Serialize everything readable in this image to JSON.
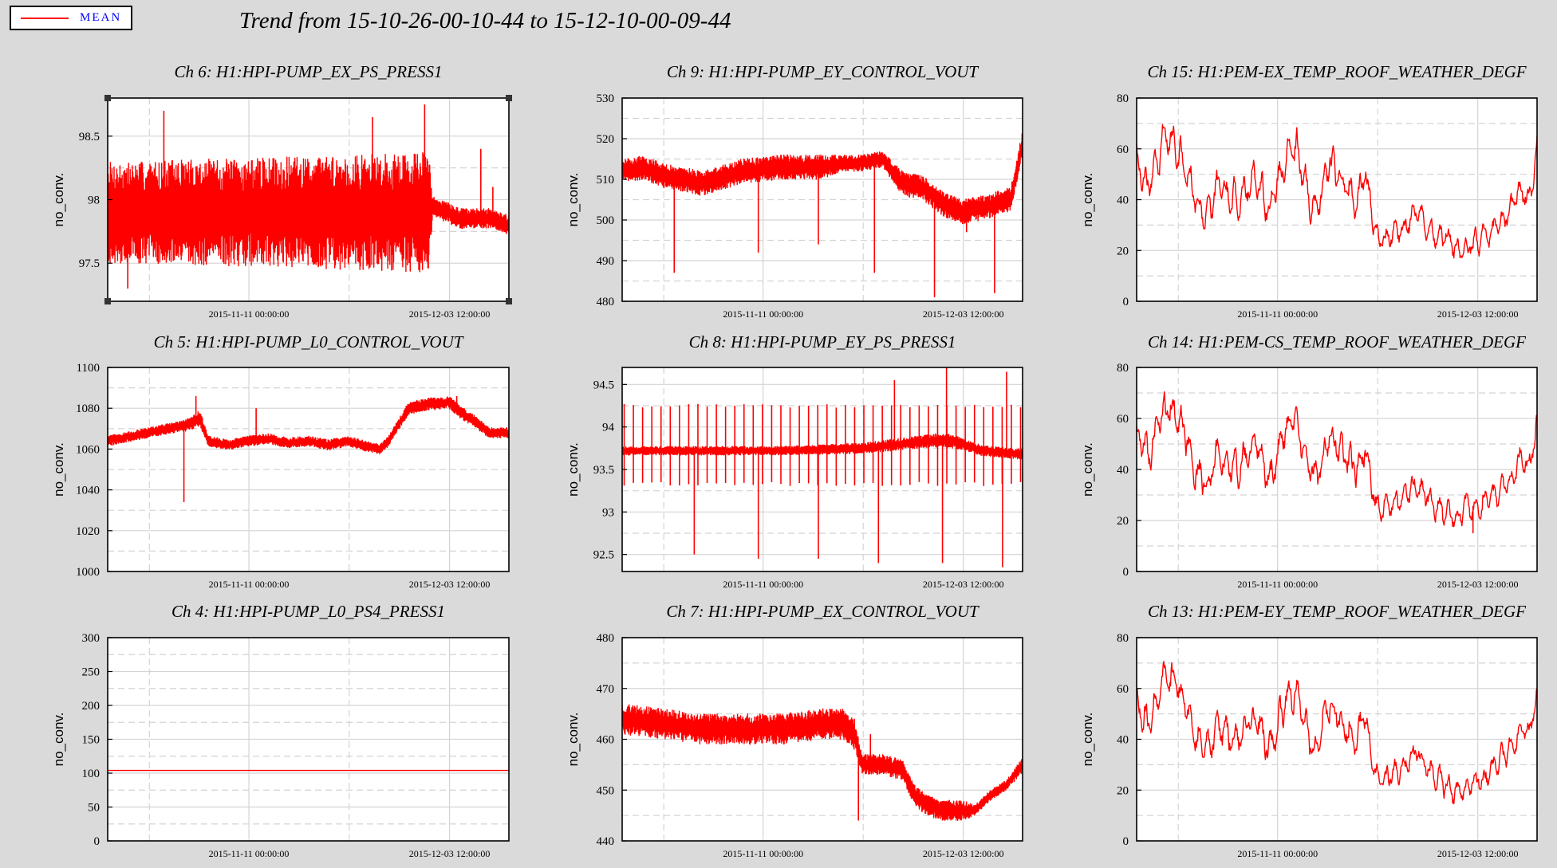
{
  "legend": {
    "label": "MEAN",
    "color": "#ff0000"
  },
  "title": "Trend from 15-10-26-00-10-44 to 15-12-10-00-09-44",
  "chart_data": [
    {
      "type": "line",
      "title": "Ch 6: H1:HPI-PUMP_EX_PS_PRESS1",
      "ylabel": "no_conv.",
      "ylim": [
        97.2,
        98.8
      ],
      "yticks": [
        "97.5",
        "98",
        "98.5"
      ],
      "ytick_values": [
        97.5,
        98.0,
        98.5
      ],
      "xticks": [
        "2015-11-11 00:00:00",
        "2015-12-03 12:00:00"
      ],
      "series": [
        {
          "color": "#ff0000",
          "style": "noisy",
          "x": [
            0.0,
            0.1,
            0.2,
            0.3,
            0.4,
            0.5,
            0.6,
            0.7,
            0.8,
            0.81,
            0.88,
            0.9,
            0.95,
            1.0
          ],
          "y": [
            97.9,
            97.9,
            97.9,
            97.9,
            97.9,
            97.9,
            97.9,
            97.9,
            97.9,
            97.95,
            97.85,
            97.85,
            97.85,
            97.8
          ],
          "amp": [
            0.4,
            0.4,
            0.42,
            0.42,
            0.43,
            0.44,
            0.45,
            0.46,
            0.48,
            0.08,
            0.08,
            0.08,
            0.08,
            0.08
          ],
          "spikes": [
            [
              0.14,
              98.7
            ],
            [
              0.79,
              98.75
            ],
            [
              0.66,
              98.65
            ],
            [
              0.93,
              98.4
            ],
            [
              0.96,
              98.1
            ],
            [
              0.05,
              97.3
            ]
          ]
        }
      ]
    },
    {
      "type": "line",
      "title": "Ch 9: H1:HPI-PUMP_EY_CONTROL_VOUT",
      "ylabel": "no_conv.",
      "ylim": [
        480,
        530
      ],
      "yticks": [
        "480",
        "490",
        "500",
        "510",
        "520",
        "530"
      ],
      "ytick_values": [
        480,
        490,
        500,
        510,
        520,
        530
      ],
      "xticks": [
        "2015-11-11 00:00:00",
        "2015-12-03 12:00:00"
      ],
      "series": [
        {
          "color": "#ff0000",
          "style": "noisy",
          "x": [
            0.0,
            0.05,
            0.1,
            0.2,
            0.3,
            0.4,
            0.5,
            0.55,
            0.6,
            0.65,
            0.7,
            0.75,
            0.8,
            0.85,
            0.9,
            0.97,
            1.0
          ],
          "y": [
            512,
            513,
            511,
            509,
            512,
            513,
            513,
            514,
            514,
            515,
            509,
            508,
            504,
            502,
            503,
            505,
            519
          ],
          "amp": [
            3,
            3,
            3,
            3,
            3,
            3,
            3,
            2,
            2,
            2,
            3,
            3,
            3,
            3,
            3,
            3,
            3
          ],
          "spikes": [
            [
              0.13,
              487
            ],
            [
              0.34,
              492
            ],
            [
              0.49,
              494
            ],
            [
              0.63,
              487
            ],
            [
              0.78,
              481
            ],
            [
              0.93,
              482
            ],
            [
              0.86,
              497
            ]
          ]
        }
      ]
    },
    {
      "type": "line",
      "title": "Ch 15: H1:PEM-EX_TEMP_ROOF_WEATHER_DEGF",
      "ylabel": "no_conv.",
      "ylim": [
        0,
        80
      ],
      "yticks": [
        "0",
        "20",
        "40",
        "60",
        "80"
      ],
      "ytick_values": [
        0,
        20,
        40,
        60,
        80
      ],
      "xticks": [
        "2015-11-11 00:00:00",
        "2015-12-03 12:00:00"
      ],
      "series": [
        {
          "color": "#ff0000",
          "style": "wavy",
          "x": [
            0.0,
            0.03,
            0.07,
            0.1,
            0.13,
            0.15,
            0.18,
            0.2,
            0.25,
            0.3,
            0.33,
            0.37,
            0.4,
            0.43,
            0.45,
            0.48,
            0.52,
            0.55,
            0.57,
            0.6,
            0.63,
            0.66,
            0.7,
            0.73,
            0.77,
            0.8,
            0.83,
            0.87,
            0.9,
            0.93,
            0.96,
            0.98,
            1.0
          ],
          "y": [
            55,
            45,
            65,
            62,
            50,
            40,
            35,
            45,
            40,
            50,
            35,
            55,
            60,
            40,
            35,
            55,
            45,
            40,
            50,
            25,
            25,
            28,
            35,
            28,
            25,
            20,
            22,
            25,
            30,
            35,
            45,
            38,
            60
          ],
          "amp": [
            6,
            7,
            7,
            7,
            7,
            7,
            7,
            7,
            7,
            7,
            7,
            7,
            7,
            7,
            7,
            7,
            7,
            7,
            7,
            5,
            5,
            5,
            5,
            5,
            5,
            5,
            5,
            5,
            5,
            5,
            5,
            5,
            5
          ],
          "spikes": []
        }
      ]
    },
    {
      "type": "line",
      "title": "Ch 5: H1:HPI-PUMP_L0_CONTROL_VOUT",
      "ylabel": "no_conv.",
      "ylim": [
        1000,
        1100
      ],
      "yticks": [
        "1000",
        "1020",
        "1040",
        "1060",
        "1080",
        "1100"
      ],
      "ytick_values": [
        1000,
        1020,
        1040,
        1060,
        1080,
        1100
      ],
      "xticks": [
        "2015-11-11 00:00:00",
        "2015-12-03 12:00:00"
      ],
      "series": [
        {
          "color": "#ff0000",
          "style": "noisy",
          "x": [
            0.0,
            0.05,
            0.1,
            0.15,
            0.2,
            0.23,
            0.25,
            0.3,
            0.35,
            0.4,
            0.45,
            0.5,
            0.55,
            0.6,
            0.65,
            0.68,
            0.7,
            0.75,
            0.8,
            0.85,
            0.88,
            0.92,
            0.95,
            1.0
          ],
          "y": [
            1064,
            1066,
            1068,
            1070,
            1072,
            1075,
            1064,
            1062,
            1064,
            1065,
            1063,
            1064,
            1062,
            1064,
            1061,
            1060,
            1064,
            1080,
            1082,
            1083,
            1078,
            1073,
            1068,
            1068
          ],
          "amp": [
            2.5,
            2.5,
            2.5,
            2.5,
            3,
            4,
            2.5,
            2.5,
            2.5,
            2.5,
            2.5,
            2.5,
            2.5,
            2.5,
            2.5,
            2.5,
            2.5,
            3,
            3,
            3,
            3,
            3,
            2.5,
            2.5
          ],
          "spikes": [
            [
              0.19,
              1034
            ],
            [
              0.22,
              1086
            ],
            [
              0.37,
              1080
            ],
            [
              0.87,
              1086
            ]
          ]
        }
      ]
    },
    {
      "type": "line",
      "title": "Ch 8: H1:HPI-PUMP_EY_PS_PRESS1",
      "ylabel": "no_conv.",
      "ylim": [
        92.3,
        94.7
      ],
      "yticks": [
        "92.5",
        "93",
        "93.5",
        "94",
        "94.5"
      ],
      "ytick_values": [
        92.5,
        93.0,
        93.5,
        94.0,
        94.5
      ],
      "xticks": [
        "2015-11-11 00:00:00",
        "2015-12-03 12:00:00"
      ],
      "series": [
        {
          "color": "#ff0000",
          "style": "noisy",
          "x": [
            0.0,
            0.2,
            0.4,
            0.6,
            0.7,
            0.8,
            0.85,
            0.9,
            1.0
          ],
          "y": [
            93.72,
            93.72,
            93.72,
            93.75,
            93.8,
            93.85,
            93.8,
            93.72,
            93.68
          ],
          "amp": [
            0.05,
            0.05,
            0.05,
            0.06,
            0.07,
            0.08,
            0.07,
            0.06,
            0.06
          ],
          "comb": {
            "count": 44,
            "high": 94.25,
            "low": 93.33
          },
          "spikes": [
            [
              0.18,
              92.5
            ],
            [
              0.34,
              92.45
            ],
            [
              0.49,
              92.45
            ],
            [
              0.64,
              92.4
            ],
            [
              0.8,
              92.4
            ],
            [
              0.95,
              92.35
            ],
            [
              0.81,
              94.7
            ],
            [
              0.96,
              94.65
            ],
            [
              0.68,
              94.55
            ]
          ]
        }
      ]
    },
    {
      "type": "line",
      "title": "Ch 14: H1:PEM-CS_TEMP_ROOF_WEATHER_DEGF",
      "ylabel": "no_conv.",
      "ylim": [
        0,
        80
      ],
      "yticks": [
        "0",
        "20",
        "40",
        "60",
        "80"
      ],
      "ytick_values": [
        0,
        20,
        40,
        60,
        80
      ],
      "xticks": [
        "2015-11-11 00:00:00",
        "2015-12-03 12:00:00"
      ],
      "series": [
        {
          "color": "#ff0000",
          "style": "wavy",
          "x": [
            0.0,
            0.03,
            0.07,
            0.1,
            0.13,
            0.15,
            0.18,
            0.2,
            0.25,
            0.3,
            0.33,
            0.37,
            0.4,
            0.43,
            0.45,
            0.48,
            0.52,
            0.55,
            0.57,
            0.6,
            0.63,
            0.66,
            0.7,
            0.73,
            0.77,
            0.8,
            0.83,
            0.87,
            0.9,
            0.93,
            0.96,
            0.98,
            1.0
          ],
          "y": [
            55,
            45,
            65,
            62,
            50,
            40,
            35,
            45,
            40,
            50,
            35,
            55,
            60,
            40,
            35,
            55,
            45,
            40,
            50,
            25,
            27,
            28,
            35,
            28,
            22,
            22,
            25,
            28,
            30,
            35,
            45,
            40,
            60
          ],
          "amp": [
            6,
            7,
            7,
            7,
            7,
            7,
            7,
            7,
            7,
            7,
            7,
            7,
            7,
            7,
            7,
            7,
            7,
            7,
            7,
            5,
            5,
            5,
            5,
            5,
            5,
            5,
            5,
            5,
            5,
            5,
            5,
            5,
            5
          ],
          "spikes": [
            [
              0.84,
              15
            ]
          ]
        }
      ]
    },
    {
      "type": "line",
      "title": "Ch 4: H1:HPI-PUMP_L0_PS4_PRESS1",
      "ylabel": "no_conv.",
      "ylim": [
        0,
        300
      ],
      "yticks": [
        "0",
        "50",
        "100",
        "150",
        "200",
        "250",
        "300"
      ],
      "ytick_values": [
        0,
        50,
        100,
        150,
        200,
        250,
        300
      ],
      "xticks": [
        "2015-11-11 00:00:00",
        "2015-12-03 12:00:00"
      ],
      "series": [
        {
          "color": "#ff0000",
          "style": "flat",
          "x": [
            0.0,
            1.0
          ],
          "y": [
            104,
            104
          ],
          "amp": [
            0,
            0
          ],
          "spikes": []
        }
      ]
    },
    {
      "type": "line",
      "title": "Ch 7: H1:HPI-PUMP_EX_CONTROL_VOUT",
      "ylabel": "no_conv.",
      "ylim": [
        440,
        480
      ],
      "yticks": [
        "440",
        "450",
        "460",
        "470",
        "480"
      ],
      "ytick_values": [
        440,
        450,
        460,
        470,
        480
      ],
      "xticks": [
        "2015-11-11 00:00:00",
        "2015-12-03 12:00:00"
      ],
      "series": [
        {
          "color": "#ff0000",
          "style": "noisy",
          "x": [
            0.0,
            0.1,
            0.2,
            0.3,
            0.4,
            0.5,
            0.55,
            0.58,
            0.6,
            0.65,
            0.7,
            0.73,
            0.76,
            0.8,
            0.85,
            0.88,
            0.92,
            0.96,
            1.0
          ],
          "y": [
            464,
            463,
            462,
            462,
            462,
            463,
            463,
            461,
            455,
            455,
            454,
            449,
            447,
            446,
            446,
            446,
            449,
            451,
            455
          ],
          "amp": [
            3,
            3,
            3,
            3,
            3,
            3,
            3,
            3,
            2,
            2,
            2,
            2,
            2,
            2,
            2,
            1,
            1,
            1,
            1.5
          ],
          "spikes": [
            [
              0.59,
              444
            ],
            [
              0.62,
              461
            ],
            [
              0.8,
              444
            ]
          ]
        }
      ]
    },
    {
      "type": "line",
      "title": "Ch 13: H1:PEM-EY_TEMP_ROOF_WEATHER_DEGF",
      "ylabel": "no_conv.",
      "ylim": [
        0,
        80
      ],
      "yticks": [
        "0",
        "20",
        "40",
        "60",
        "80"
      ],
      "ytick_values": [
        0,
        20,
        40,
        60,
        80
      ],
      "xticks": [
        "2015-11-11 00:00:00",
        "2015-12-03 12:00:00"
      ],
      "series": [
        {
          "color": "#ff0000",
          "style": "wavy",
          "x": [
            0.0,
            0.03,
            0.07,
            0.1,
            0.13,
            0.15,
            0.18,
            0.2,
            0.25,
            0.3,
            0.33,
            0.37,
            0.4,
            0.43,
            0.45,
            0.48,
            0.52,
            0.55,
            0.57,
            0.6,
            0.63,
            0.66,
            0.7,
            0.73,
            0.77,
            0.8,
            0.83,
            0.87,
            0.9,
            0.93,
            0.96,
            0.98,
            1.0
          ],
          "y": [
            55,
            45,
            65,
            62,
            50,
            40,
            35,
            45,
            40,
            50,
            35,
            55,
            60,
            40,
            35,
            55,
            45,
            40,
            50,
            25,
            25,
            28,
            35,
            28,
            22,
            18,
            22,
            25,
            30,
            35,
            45,
            40,
            58
          ],
          "amp": [
            6,
            7,
            7,
            7,
            7,
            7,
            7,
            7,
            7,
            7,
            7,
            7,
            7,
            7,
            7,
            7,
            7,
            7,
            7,
            5,
            5,
            5,
            5,
            5,
            5,
            5,
            5,
            5,
            5,
            5,
            5,
            5,
            5
          ],
          "spikes": []
        }
      ]
    }
  ]
}
